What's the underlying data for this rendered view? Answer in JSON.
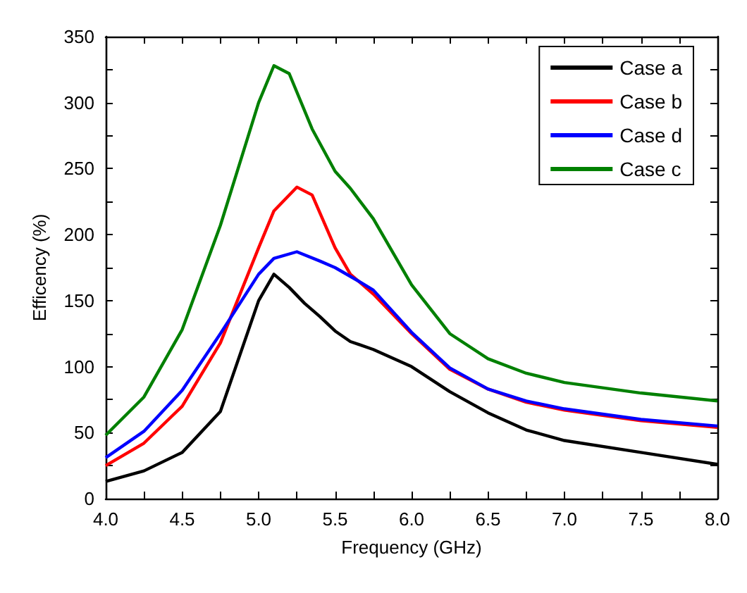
{
  "chart_data": {
    "type": "line",
    "xlabel": "Frequency (GHz)",
    "ylabel": "Efficency (%)",
    "xlim": [
      4,
      8
    ],
    "xticks": [
      {
        "value": 4,
        "label": "4.0"
      },
      4.5,
      {
        "value": 5,
        "label": "5.0"
      },
      5.5,
      {
        "value": 6,
        "label": "6.0"
      },
      6.5,
      {
        "value": 7,
        "label": "7.0"
      },
      7.5,
      {
        "value": 8,
        "label": "8.0"
      }
    ],
    "ylim": [
      0,
      350
    ],
    "yticks": [
      0,
      50,
      100,
      150,
      200,
      250,
      300,
      350
    ],
    "grid": false,
    "legend": "top right",
    "marker": "none",
    "line_style": "solid",
    "series": [
      {
        "name": "Case a",
        "color": "#000000",
        "x": [
          4.0,
          4.25,
          4.5,
          4.75,
          5.0,
          5.1,
          5.2,
          5.3,
          5.4,
          5.5,
          5.6,
          5.75,
          6.0,
          6.25,
          6.5,
          6.75,
          7.0,
          7.5,
          8.0
        ],
        "values": [
          13,
          21,
          35,
          66,
          150,
          170,
          160,
          148,
          138,
          127,
          119,
          113,
          100,
          81,
          65,
          52,
          44,
          35,
          26
        ]
      },
      {
        "name": "Case b",
        "color": "#ff0000",
        "x": [
          4.0,
          4.25,
          4.5,
          4.75,
          5.0,
          5.1,
          5.25,
          5.35,
          5.5,
          5.6,
          5.75,
          6.0,
          6.25,
          6.5,
          6.75,
          7.0,
          7.5,
          8.0
        ],
        "values": [
          25,
          42,
          70,
          118,
          190,
          218,
          236,
          230,
          190,
          170,
          155,
          125,
          98,
          83,
          73,
          67,
          59,
          54
        ]
      },
      {
        "name": "Case d",
        "color": "#0000ff",
        "x": [
          4.0,
          4.25,
          4.5,
          4.75,
          5.0,
          5.1,
          5.25,
          5.4,
          5.5,
          5.65,
          5.75,
          6.0,
          6.25,
          6.5,
          6.75,
          7.0,
          7.5,
          8.0
        ],
        "values": [
          31,
          51,
          82,
          125,
          170,
          182,
          187,
          180,
          175,
          165,
          158,
          126,
          99,
          83,
          74,
          68,
          60,
          55
        ]
      },
      {
        "name": "Case c",
        "color": "#008000",
        "x": [
          4.0,
          4.25,
          4.5,
          4.75,
          5.0,
          5.1,
          5.2,
          5.35,
          5.5,
          5.6,
          5.75,
          6.0,
          6.25,
          6.5,
          6.75,
          7.0,
          7.5,
          8.0
        ],
        "values": [
          48,
          77,
          128,
          207,
          300,
          328,
          322,
          280,
          248,
          235,
          212,
          162,
          125,
          106,
          95,
          88,
          80,
          74
        ]
      }
    ]
  }
}
